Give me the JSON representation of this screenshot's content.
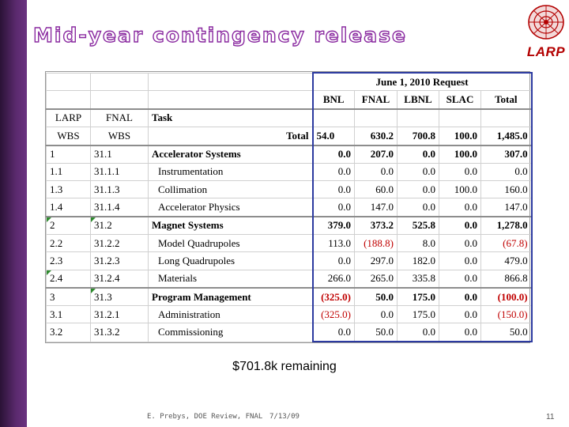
{
  "slide": {
    "title": "Mid-year contingency release",
    "logo_text": "LARP",
    "remaining": "$701.8k remaining",
    "footer_author": "E. Prebys, DOE Review, FNAL",
    "footer_date": "7/13/09",
    "page_number": "11"
  },
  "table": {
    "request_header": "June 1, 2010 Request",
    "col_labs": [
      "BNL",
      "FNAL",
      "LBNL",
      "SLAC",
      "Total"
    ],
    "hdr_larp": "LARP",
    "hdr_fnal": "FNAL",
    "hdr_task": "Task",
    "hdr_wbs1": "WBS",
    "hdr_wbs2": "WBS",
    "hdr_total_label": "Total",
    "totals": [
      "54.0",
      "630.2",
      "700.8",
      "100.0",
      "1,485.0"
    ],
    "rows": [
      {
        "larp": "1",
        "fnal": "31.1",
        "task": "Accelerator Systems",
        "vals": [
          "0.0",
          "207.0",
          "0.0",
          "100.0",
          "307.0"
        ]
      },
      {
        "larp": "1.1",
        "fnal": "31.1.1",
        "task": "Instrumentation",
        "vals": [
          "0.0",
          "0.0",
          "0.0",
          "0.0",
          "0.0"
        ]
      },
      {
        "larp": "1.3",
        "fnal": "31.1.3",
        "task": "Collimation",
        "vals": [
          "0.0",
          "60.0",
          "0.0",
          "100.0",
          "160.0"
        ]
      },
      {
        "larp": "1.4",
        "fnal": "31.1.4",
        "task": "Accelerator Physics",
        "vals": [
          "0.0",
          "147.0",
          "0.0",
          "0.0",
          "147.0"
        ]
      },
      {
        "larp": "2",
        "fnal": "31.2",
        "task": "Magnet Systems",
        "vals": [
          "379.0",
          "373.2",
          "525.8",
          "0.0",
          "1,278.0"
        ]
      },
      {
        "larp": "2.2",
        "fnal": "31.2.2",
        "task": "Model Quadrupoles",
        "vals": [
          "113.0",
          "(188.8)",
          "8.0",
          "0.0",
          "(67.8)"
        ]
      },
      {
        "larp": "2.3",
        "fnal": "31.2.3",
        "task": "Long Quadrupoles",
        "vals": [
          "0.0",
          "297.0",
          "182.0",
          "0.0",
          "479.0"
        ]
      },
      {
        "larp": "2.4",
        "fnal": "31.2.4",
        "task": "Materials",
        "vals": [
          "266.0",
          "265.0",
          "335.8",
          "0.0",
          "866.8"
        ]
      },
      {
        "larp": "3",
        "fnal": "31.3",
        "task": "Program Management",
        "vals": [
          "(325.0)",
          "50.0",
          "175.0",
          "0.0",
          "(100.0)"
        ]
      },
      {
        "larp": "3.1",
        "fnal": "31.2.1",
        "task": "Administration",
        "vals": [
          "(325.0)",
          "0.0",
          "175.0",
          "0.0",
          "(150.0)"
        ]
      },
      {
        "larp": "3.2",
        "fnal": "31.3.2",
        "task": "Commissioning",
        "vals": [
          "0.0",
          "50.0",
          "0.0",
          "0.0",
          "50.0"
        ]
      }
    ]
  }
}
